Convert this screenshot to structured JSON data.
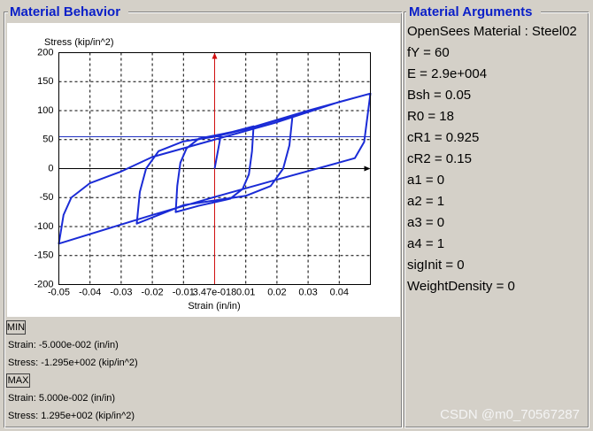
{
  "behavior_title": "Material Behavior",
  "chart_data": {
    "type": "line",
    "x_label": "Strain (in/in)",
    "y_label": "Stress (kip/in^2)",
    "xlim": [
      -0.05,
      0.05
    ],
    "ylim": [
      -200,
      200
    ],
    "xticks": [
      -0.05,
      -0.04,
      -0.03,
      -0.02,
      -0.01,
      {
        "value": 3.47e-18,
        "label": "3.47e-018"
      },
      0.01,
      0.02,
      0.03,
      0.04
    ],
    "yticks": [
      -200,
      -150,
      -100,
      -50,
      0,
      50,
      100,
      150,
      200
    ],
    "grid": true,
    "reference_line": 55,
    "reference_color": "#2030c0",
    "series": [
      {
        "color": "#1a2bd6",
        "x": [
          0,
          0.002,
          0.0125,
          0.012,
          0.011,
          0.009,
          0.005,
          0,
          -0.005,
          -0.0125,
          -0.012,
          -0.011,
          -0.009,
          -0.005,
          0,
          0.01,
          0.025,
          0.024,
          0.022,
          0.018,
          0.01,
          0,
          -0.01,
          -0.025,
          -0.024,
          -0.022,
          -0.018,
          -0.01,
          0,
          0.01,
          0.03,
          0.05,
          0.048,
          0.045,
          0.039,
          0.02,
          0,
          -0.02,
          -0.05,
          -0.0485,
          -0.046,
          -0.04,
          -0.03,
          -0.02,
          0,
          0.02,
          0.04,
          0.05
        ],
        "values": [
          0,
          58,
          73,
          30,
          -10,
          -35,
          -52,
          -58,
          -64,
          -75,
          -30,
          10,
          35,
          52,
          57,
          68,
          91,
          40,
          0,
          -30,
          -47,
          -55,
          -63,
          -95,
          -40,
          0,
          30,
          47,
          55,
          68,
          100,
          129.5,
          46,
          18,
          9,
          -19,
          -49,
          -80,
          -129.5,
          -80,
          -50,
          -25,
          -5,
          20,
          50,
          80,
          115,
          129.5
        ]
      }
    ]
  },
  "min": {
    "button": "MIN",
    "strain": "Strain: -5.000e-002 (in/in)",
    "stress": "Stress: -1.295e+002 (kip/in^2)"
  },
  "max": {
    "button": "MAX",
    "strain": "Strain: 5.000e-002 (in/in)",
    "stress": "Stress: 1.295e+002 (kip/in^2)"
  },
  "arguments_title": "Material Arguments",
  "arguments": [
    "OpenSees Material : Steel02",
    "fY = 60",
    "E = 2.9e+004",
    "Bsh = 0.05",
    "R0 = 18",
    "cR1 = 0.925",
    "cR2 = 0.15",
    "a1 = 0",
    "a2 = 1",
    "a3 = 0",
    "a4 = 1",
    "sigInit = 0",
    "WeightDensity = 0"
  ],
  "watermark": "CSDN @m0_70567287"
}
